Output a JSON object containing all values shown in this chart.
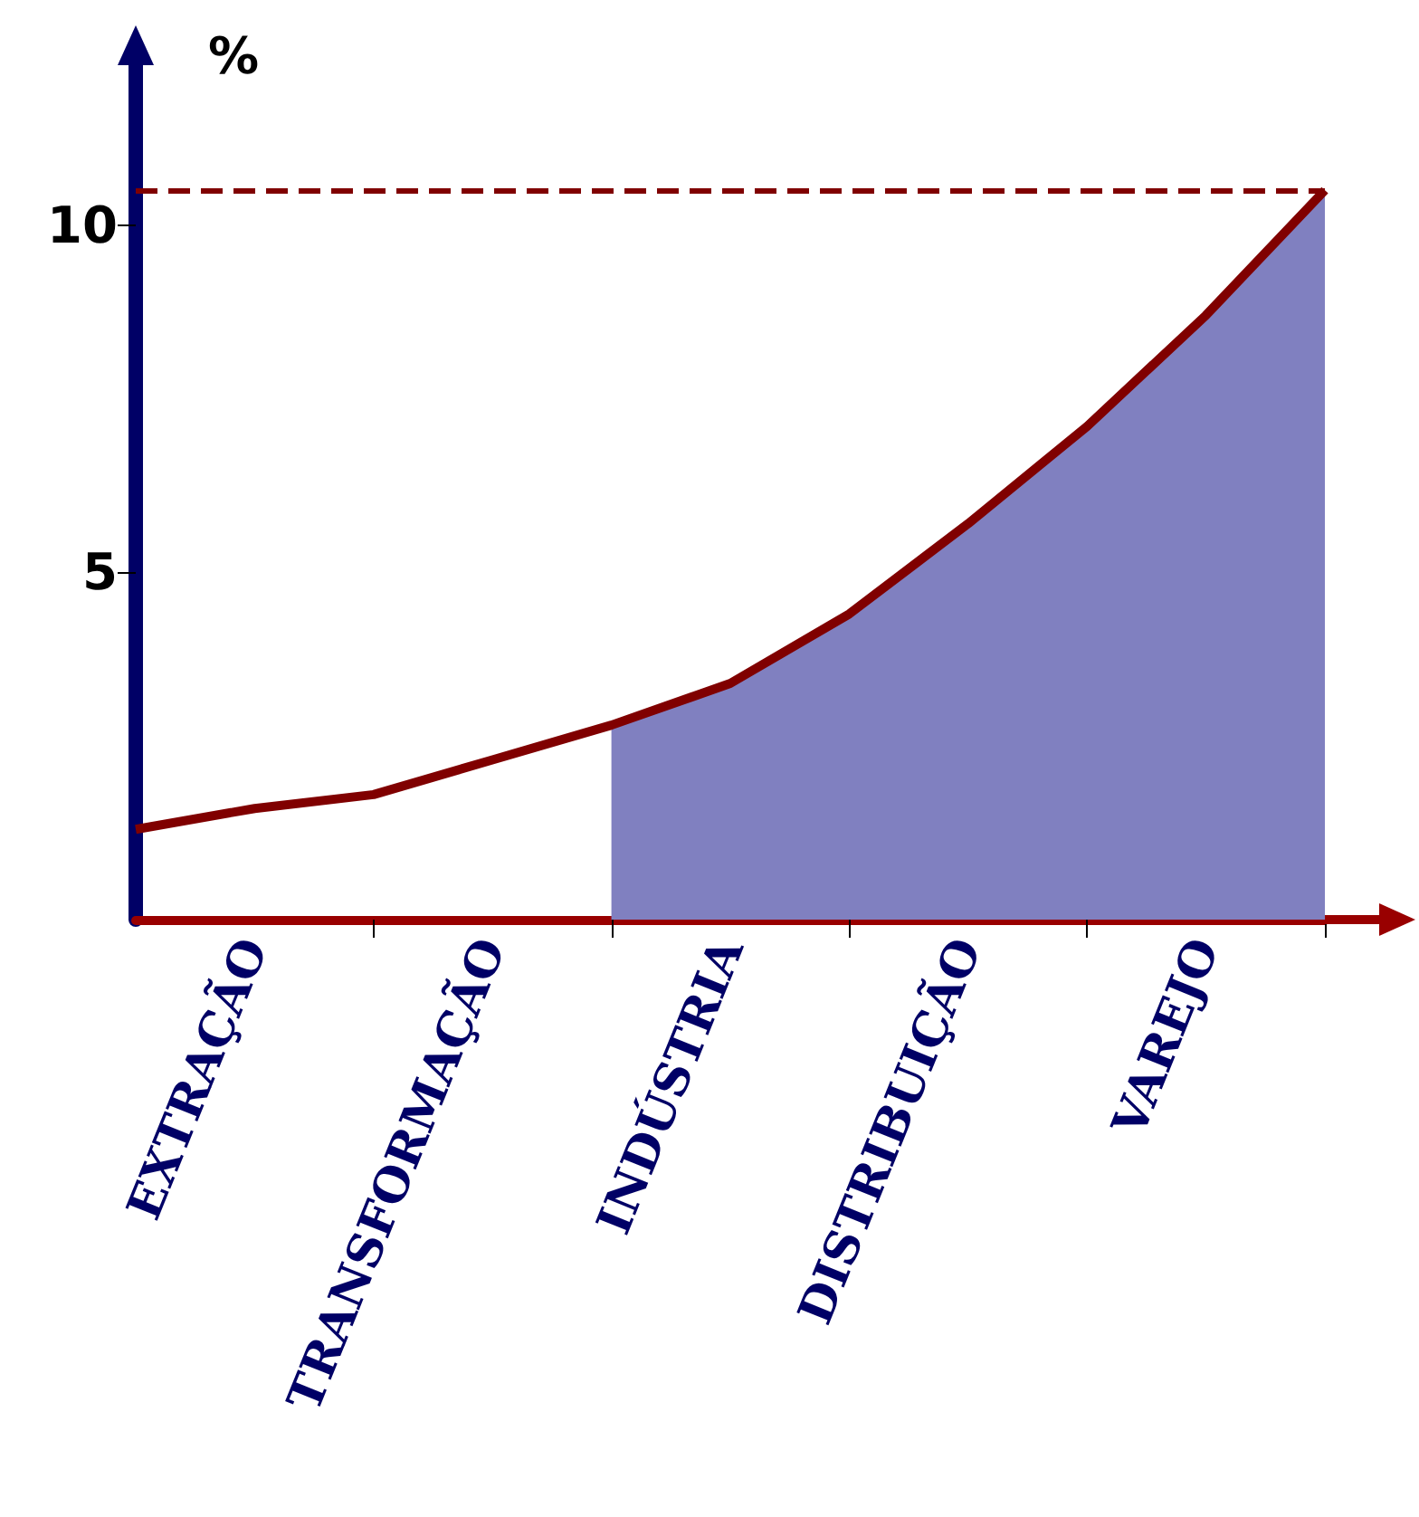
{
  "chart_data": {
    "type": "line",
    "ylabel": "%",
    "ylim": [
      0,
      12.3
    ],
    "yticks": [
      5,
      10
    ],
    "categories": [
      null,
      "EXTRAÇÃO",
      null,
      "TRANSFORMAÇÃO",
      null,
      "INDÚSTRIA",
      null,
      "DISTRIBUIÇÃO",
      null,
      "VAREJO",
      null
    ],
    "grid": false,
    "marker": "none",
    "series": [
      {
        "type": "area",
        "color": "#8080c0",
        "values": [
          null,
          null,
          null,
          null,
          2.8,
          3.4,
          4.4,
          5.7,
          7.1,
          8.7,
          10.5
        ]
      },
      {
        "color": "#800000",
        "values": [
          1.3,
          1.6,
          1.8,
          2.3,
          2.8,
          3.4,
          4.4,
          5.7,
          7.1,
          8.7,
          10.5
        ]
      }
    ],
    "ref_lines": [
      {
        "axis": "y",
        "value": 10.5,
        "color": "#800000",
        "line_style": "dashed"
      }
    ]
  }
}
